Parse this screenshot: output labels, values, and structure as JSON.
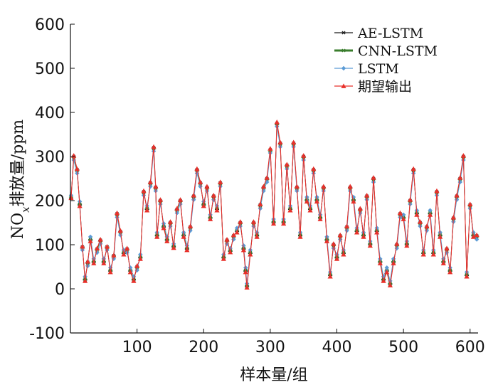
{
  "chart_data": {
    "type": "line",
    "title": "",
    "xlabel": "样本量/组",
    "ylabel_parts": {
      "main": "NO",
      "sub": "x",
      "rest": "排放量/ppm"
    },
    "xlim": [
      0,
      612
    ],
    "ylim": [
      -100,
      600
    ],
    "xticks": [
      100,
      200,
      300,
      400,
      500,
      600
    ],
    "yticks": [
      -100,
      0,
      100,
      200,
      300,
      400,
      500,
      600
    ],
    "xtick_labels": [
      "100",
      "200",
      "300",
      "400",
      "500",
      "600"
    ],
    "ytick_labels": [
      "-100",
      "0",
      "100",
      "200",
      "300",
      "400",
      "500",
      "600"
    ],
    "legend_position": "top-right",
    "grid": false,
    "x": [
      1,
      5,
      10,
      14,
      18,
      22,
      26,
      30,
      35,
      40,
      45,
      50,
      55,
      60,
      65,
      70,
      75,
      80,
      85,
      90,
      95,
      100,
      105,
      110,
      115,
      120,
      125,
      128,
      130,
      135,
      140,
      145,
      150,
      155,
      160,
      165,
      170,
      175,
      180,
      185,
      190,
      195,
      200,
      205,
      210,
      215,
      220,
      225,
      230,
      235,
      240,
      245,
      250,
      255,
      260,
      263,
      265,
      270,
      275,
      280,
      285,
      290,
      295,
      300,
      305,
      310,
      315,
      320,
      325,
      330,
      335,
      340,
      345,
      350,
      355,
      360,
      365,
      370,
      375,
      380,
      385,
      390,
      395,
      400,
      405,
      410,
      415,
      420,
      425,
      430,
      435,
      440,
      445,
      450,
      455,
      460,
      465,
      470,
      475,
      480,
      485,
      490,
      495,
      500,
      505,
      510,
      515,
      520,
      525,
      530,
      535,
      540,
      545,
      550,
      555,
      560,
      565,
      570,
      575,
      580,
      585,
      590,
      595,
      600,
      605,
      610
    ],
    "series": [
      {
        "name": "AE-LSTM",
        "color": "#1a1a1a",
        "marker": "star",
        "values": [
          205,
          300,
          270,
          190,
          95,
          20,
          60,
          110,
          60,
          90,
          110,
          60,
          95,
          40,
          75,
          170,
          130,
          80,
          90,
          40,
          20,
          50,
          70,
          220,
          180,
          240,
          320,
          230,
          120,
          200,
          140,
          110,
          150,
          95,
          180,
          200,
          120,
          90,
          140,
          210,
          270,
          240,
          190,
          230,
          160,
          210,
          180,
          240,
          70,
          110,
          85,
          120,
          130,
          150,
          90,
          40,
          5,
          80,
          150,
          120,
          190,
          230,
          250,
          315,
          150,
          375,
          330,
          150,
          280,
          180,
          330,
          230,
          120,
          300,
          200,
          180,
          270,
          200,
          160,
          230,
          110,
          30,
          100,
          70,
          120,
          80,
          140,
          230,
          200,
          130,
          180,
          120,
          210,
          100,
          250,
          130,
          60,
          20,
          40,
          10,
          60,
          100,
          170,
          160,
          100,
          200,
          270,
          170,
          150,
          80,
          140,
          170,
          80,
          220,
          120,
          60,
          90,
          40,
          160,
          210,
          250,
          300,
          30,
          190,
          120,
          120
        ]
      },
      {
        "name": "CNN-LSTM",
        "color": "#3a7d2c",
        "marker": "star",
        "values": [
          208,
          298,
          268,
          192,
          92,
          22,
          58,
          112,
          62,
          88,
          108,
          62,
          93,
          42,
          73,
          168,
          128,
          82,
          88,
          42,
          22,
          48,
          72,
          218,
          182,
          238,
          318,
          228,
          122,
          198,
          142,
          112,
          148,
          97,
          178,
          198,
          122,
          92,
          138,
          208,
          268,
          238,
          192,
          228,
          162,
          208,
          182,
          238,
          72,
          108,
          87,
          118,
          132,
          148,
          92,
          42,
          7,
          82,
          148,
          122,
          188,
          228,
          248,
          312,
          152,
          372,
          328,
          152,
          278,
          182,
          328,
          228,
          122,
          298,
          202,
          182,
          268,
          202,
          162,
          228,
          112,
          32,
          98,
          72,
          118,
          82,
          138,
          228,
          202,
          132,
          178,
          122,
          208,
          102,
          248,
          132,
          62,
          22,
          42,
          12,
          62,
          98,
          168,
          162,
          102,
          198,
          268,
          172,
          148,
          82,
          138,
          172,
          82,
          218,
          122,
          62,
          88,
          42,
          158,
          208,
          248,
          298,
          32,
          188,
          122,
          118
        ]
      },
      {
        "name": "LSTM",
        "color": "#5b9bd5",
        "marker": "diamond",
        "values": [
          212,
          292,
          262,
          198,
          88,
          28,
          52,
          118,
          68,
          82,
          102,
          68,
          88,
          48,
          68,
          162,
          122,
          88,
          82,
          48,
          28,
          42,
          78,
          212,
          188,
          232,
          312,
          222,
          128,
          192,
          148,
          118,
          142,
          102,
          172,
          192,
          128,
          98,
          132,
          202,
          262,
          232,
          198,
          222,
          168,
          202,
          188,
          232,
          78,
          102,
          92,
          112,
          138,
          142,
          98,
          48,
          12,
          88,
          142,
          128,
          182,
          222,
          242,
          308,
          158,
          368,
          322,
          158,
          272,
          188,
          322,
          222,
          128,
          292,
          208,
          188,
          262,
          208,
          168,
          222,
          118,
          38,
          92,
          78,
          112,
          88,
          132,
          222,
          208,
          138,
          172,
          128,
          202,
          108,
          242,
          138,
          68,
          28,
          48,
          18,
          68,
          92,
          162,
          168,
          108,
          192,
          262,
          178,
          142,
          88,
          132,
          178,
          88,
          212,
          128,
          68,
          82,
          48,
          152,
          202,
          242,
          292,
          38,
          182,
          128,
          112
        ]
      },
      {
        "name": "期望输出",
        "color": "#e8302a",
        "marker": "triangle",
        "values": [
          206,
          302,
          272,
          188,
          96,
          18,
          62,
          108,
          58,
          92,
          112,
          58,
          96,
          38,
          76,
          172,
          132,
          78,
          92,
          38,
          18,
          52,
          68,
          222,
          178,
          242,
          322,
          232,
          118,
          202,
          138,
          108,
          152,
          93,
          182,
          202,
          118,
          88,
          142,
          212,
          272,
          242,
          188,
          232,
          158,
          212,
          178,
          242,
          68,
          112,
          83,
          122,
          128,
          152,
          88,
          38,
          3,
          78,
          152,
          118,
          192,
          232,
          252,
          318,
          148,
          378,
          332,
          148,
          282,
          178,
          332,
          232,
          118,
          302,
          198,
          178,
          272,
          198,
          158,
          232,
          108,
          28,
          102,
          68,
          122,
          78,
          142,
          232,
          198,
          128,
          182,
          118,
          212,
          98,
          252,
          128,
          58,
          18,
          38,
          8,
          58,
          102,
          172,
          158,
          98,
          202,
          272,
          168,
          152,
          78,
          142,
          168,
          78,
          222,
          118,
          58,
          92,
          38,
          162,
          212,
          252,
          302,
          28,
          192,
          118,
          122
        ]
      }
    ]
  }
}
